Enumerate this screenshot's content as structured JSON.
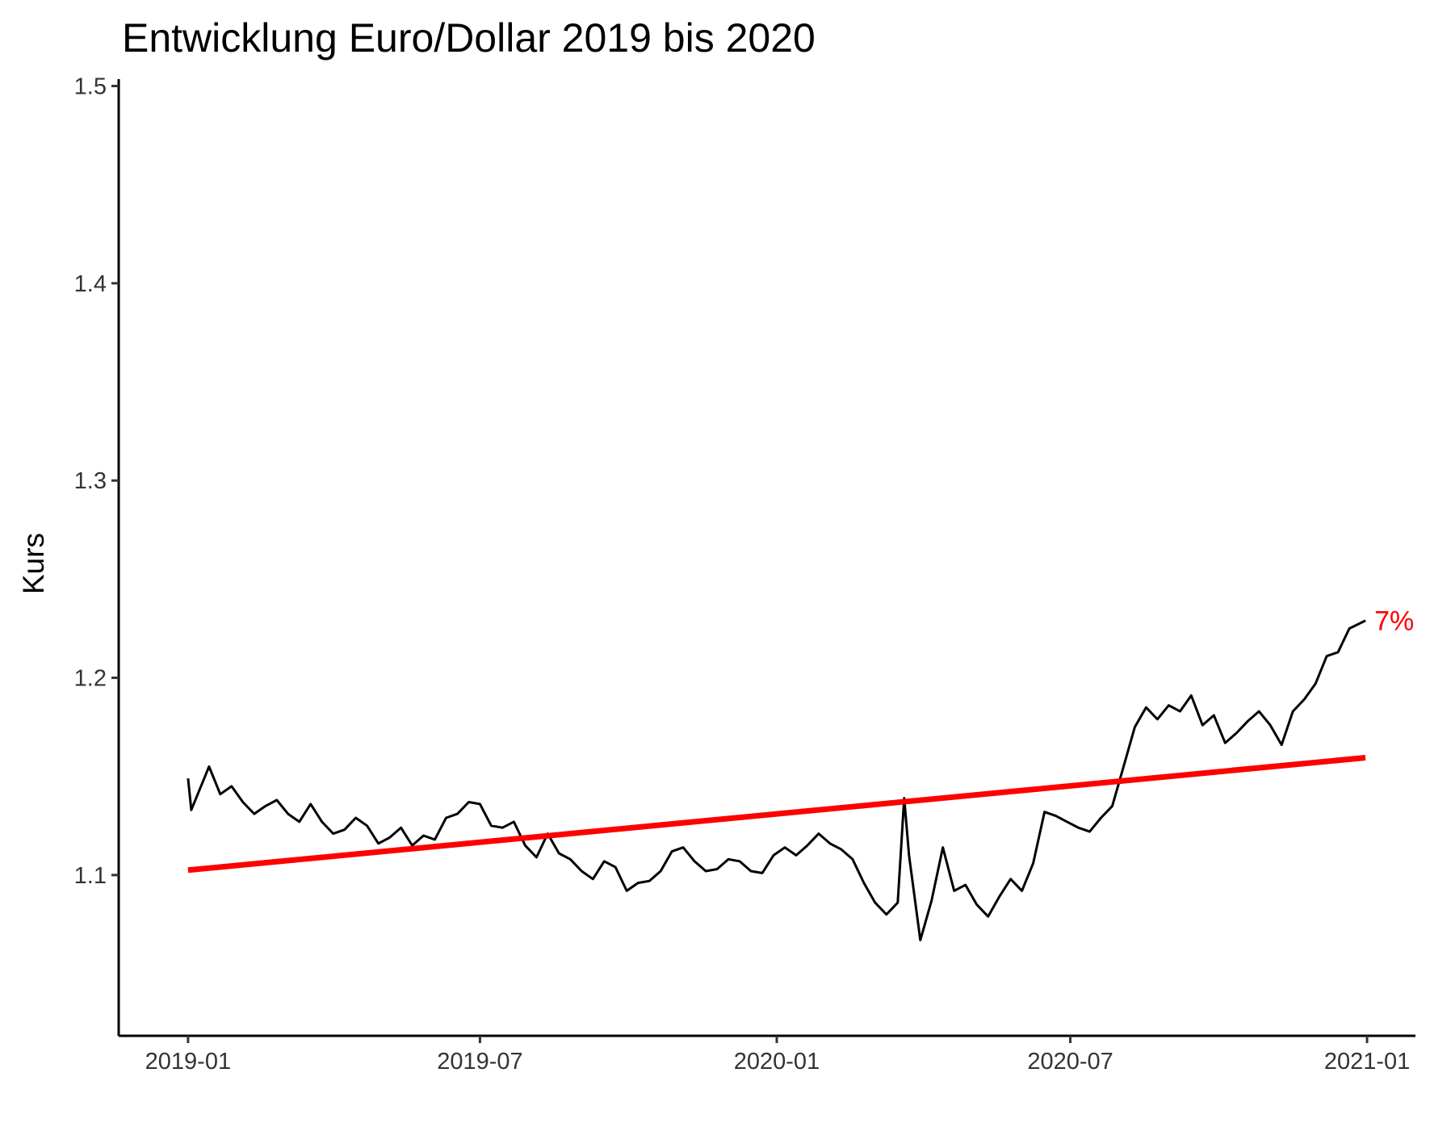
{
  "chart_data": {
    "type": "line",
    "title": "Entwicklung Euro/Dollar 2019 bis 2020",
    "xlabel": "",
    "ylabel": "Kurs",
    "x_ticks": [
      "2019-01",
      "2019-07",
      "2020-01",
      "2020-07",
      "2021-01"
    ],
    "y_ticks": [
      "1.1",
      "1.2",
      "1.3",
      "1.4",
      "1.5"
    ],
    "xlim": [
      "2018-11-19",
      "2021-01-31"
    ],
    "ylim": [
      1.0185,
      1.5035
    ],
    "grid": false,
    "colors": {
      "series": "#000000",
      "trend": "#FF0000",
      "annotation": "#FF0000"
    },
    "series": [
      {
        "type": "line",
        "x": [
          "2019-01-01",
          "2019-01-03",
          "2019-01-07",
          "2019-01-14",
          "2019-01-21",
          "2019-01-28",
          "2019-02-04",
          "2019-02-11",
          "2019-02-18",
          "2019-02-25",
          "2019-03-04",
          "2019-03-11",
          "2019-03-18",
          "2019-03-25",
          "2019-04-01",
          "2019-04-08",
          "2019-04-15",
          "2019-04-22",
          "2019-04-29",
          "2019-05-06",
          "2019-05-13",
          "2019-05-20",
          "2019-05-27",
          "2019-06-03",
          "2019-06-10",
          "2019-06-17",
          "2019-06-24",
          "2019-07-01",
          "2019-07-08",
          "2019-07-15",
          "2019-07-22",
          "2019-07-29",
          "2019-08-05",
          "2019-08-12",
          "2019-08-19",
          "2019-08-26",
          "2019-09-02",
          "2019-09-09",
          "2019-09-16",
          "2019-09-23",
          "2019-09-30",
          "2019-10-07",
          "2019-10-14",
          "2019-10-21",
          "2019-10-28",
          "2019-11-04",
          "2019-11-11",
          "2019-11-18",
          "2019-11-25",
          "2019-12-02",
          "2019-12-09",
          "2019-12-16",
          "2019-12-23",
          "2019-12-30",
          "2020-01-06",
          "2020-01-13",
          "2020-01-20",
          "2020-01-27",
          "2020-02-03",
          "2020-02-10",
          "2020-02-17",
          "2020-02-24",
          "2020-03-02",
          "2020-03-09",
          "2020-03-16",
          "2020-03-20",
          "2020-03-23",
          "2020-03-30",
          "2020-04-06",
          "2020-04-13",
          "2020-04-20",
          "2020-04-27",
          "2020-05-04",
          "2020-05-11",
          "2020-05-18",
          "2020-05-25",
          "2020-06-01",
          "2020-06-08",
          "2020-06-15",
          "2020-06-22",
          "2020-06-29",
          "2020-07-06",
          "2020-07-13",
          "2020-07-20",
          "2020-07-27",
          "2020-08-03",
          "2020-08-10",
          "2020-08-17",
          "2020-08-24",
          "2020-08-31",
          "2020-09-07",
          "2020-09-14",
          "2020-09-21",
          "2020-09-28",
          "2020-10-05",
          "2020-10-12",
          "2020-10-19",
          "2020-10-26",
          "2020-11-02",
          "2020-11-09",
          "2020-11-16",
          "2020-11-23",
          "2020-11-30",
          "2020-12-07",
          "2020-12-14",
          "2020-12-21",
          "2020-12-31"
        ],
        "y": [
          1.149,
          1.133,
          1.141,
          1.155,
          1.141,
          1.145,
          1.137,
          1.131,
          1.135,
          1.138,
          1.131,
          1.127,
          1.136,
          1.127,
          1.121,
          1.123,
          1.129,
          1.125,
          1.116,
          1.119,
          1.124,
          1.115,
          1.12,
          1.118,
          1.129,
          1.131,
          1.137,
          1.136,
          1.125,
          1.124,
          1.127,
          1.115,
          1.109,
          1.121,
          1.111,
          1.108,
          1.102,
          1.098,
          1.107,
          1.104,
          1.092,
          1.096,
          1.097,
          1.102,
          1.112,
          1.114,
          1.107,
          1.102,
          1.103,
          1.108,
          1.107,
          1.102,
          1.101,
          1.11,
          1.114,
          1.11,
          1.115,
          1.121,
          1.116,
          1.113,
          1.108,
          1.096,
          1.086,
          1.08,
          1.086,
          1.139,
          1.11,
          1.067,
          1.087,
          1.114,
          1.092,
          1.095,
          1.085,
          1.079,
          1.089,
          1.098,
          1.092,
          1.106,
          1.132,
          1.13,
          1.127,
          1.124,
          1.122,
          1.129,
          1.135,
          1.155,
          1.175,
          1.185,
          1.179,
          1.186,
          1.183,
          1.191,
          1.176,
          1.181,
          1.167,
          1.172,
          1.178,
          1.183,
          1.176,
          1.166,
          1.183,
          1.189,
          1.197,
          1.211,
          1.213,
          1.225,
          1.229
        ]
      },
      {
        "type": "line",
        "x": [
          "2019-01-01",
          "2020-12-31"
        ],
        "y": [
          1.1025,
          1.1595
        ]
      }
    ],
    "annotations": [
      {
        "text": "7%",
        "x": "2020-12-31",
        "y": 1.229
      }
    ]
  }
}
